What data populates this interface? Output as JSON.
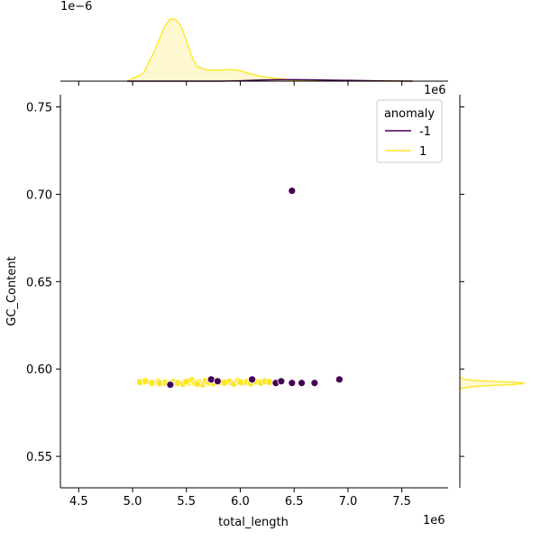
{
  "chart_data": {
    "type": "scatter",
    "title": "",
    "xlabel": "total_length",
    "ylabel": "GC_Content",
    "x_offset_label": "1e6",
    "y_top_offset_label": "1e−6",
    "y_right_offset_label": "1e6",
    "xlim": [
      4.33,
      7.93
    ],
    "ylim": [
      0.532,
      0.757
    ],
    "xticks": [
      4.5,
      5.0,
      5.5,
      6.0,
      6.5,
      7.0,
      7.5
    ],
    "xtick_labels": [
      "4.5",
      "5.0",
      "5.5",
      "6.0",
      "6.5",
      "7.0",
      "7.5"
    ],
    "yticks": [
      0.55,
      0.6,
      0.65,
      0.7,
      0.75
    ],
    "ytick_labels": [
      "0.55",
      "0.60",
      "0.65",
      "0.70",
      "0.75"
    ],
    "legend": {
      "title": "anomaly",
      "placement": "top-right",
      "entries": [
        {
          "label": "-1",
          "color": "#440154"
        },
        {
          "label": "1",
          "color": "#fde725"
        }
      ]
    },
    "colors": {
      "anomaly": "#440154",
      "normal": "#fde725",
      "normal_fill": "#fef3b0"
    },
    "series": [
      {
        "group": "-1",
        "color": "#440154",
        "x": [
          6.48,
          6.92,
          6.33,
          6.38,
          6.48,
          6.57,
          6.69,
          5.73,
          5.79,
          6.11,
          5.35
        ],
        "y": [
          0.702,
          0.594,
          0.592,
          0.593,
          0.592,
          0.592,
          0.592,
          0.594,
          0.593,
          0.594,
          0.591
        ]
      },
      {
        "group": "1",
        "color": "#fde725",
        "x": [
          5.07,
          5.12,
          5.18,
          5.24,
          5.3,
          5.35,
          5.38,
          5.42,
          5.47,
          5.52,
          5.55,
          5.58,
          5.62,
          5.65,
          5.68,
          5.71,
          5.75,
          5.78,
          5.82,
          5.86,
          5.9,
          5.94,
          5.98,
          6.02,
          6.06,
          6.1,
          6.14,
          6.19,
          6.23,
          6.27,
          5.5,
          5.6,
          5.85,
          6.0,
          5.25
        ],
        "y": [
          0.5925,
          0.593,
          0.592,
          0.5928,
          0.5922,
          0.5918,
          0.5925,
          0.592,
          0.5915,
          0.5922,
          0.5935,
          0.5918,
          0.5925,
          0.5912,
          0.593,
          0.5922,
          0.5918,
          0.5935,
          0.5925,
          0.592,
          0.5928,
          0.5915,
          0.5932,
          0.592,
          0.5925,
          0.5918,
          0.5928,
          0.5922,
          0.593,
          0.5925,
          0.5928,
          0.5915,
          0.5922,
          0.5925,
          0.5918
        ]
      }
    ],
    "marginal_x": {
      "x": [
        4.95,
        5.1,
        5.2,
        5.3,
        5.35,
        5.4,
        5.45,
        5.5,
        5.55,
        5.6,
        5.7,
        5.8,
        5.9,
        6.0,
        6.1,
        6.2,
        6.3,
        6.4,
        6.5,
        6.7,
        7.0,
        7.3,
        7.6
      ],
      "normal_density": [
        0.0,
        0.12,
        0.45,
        0.85,
        0.96,
        0.95,
        0.85,
        0.62,
        0.38,
        0.22,
        0.17,
        0.17,
        0.18,
        0.16,
        0.11,
        0.07,
        0.05,
        0.03,
        0.015,
        0.006,
        0.002,
        0.0,
        0.0
      ],
      "anomaly_density": [
        0.0,
        0.0,
        0.0,
        0.0,
        0.0,
        0.0,
        0.0,
        0.0,
        0.0,
        0.0,
        0.0,
        0.0,
        0.002,
        0.006,
        0.012,
        0.018,
        0.022,
        0.024,
        0.024,
        0.02,
        0.012,
        0.004,
        0.0
      ]
    },
    "marginal_y": {
      "y": [
        0.5885,
        0.589,
        0.5898,
        0.5905,
        0.591,
        0.5915,
        0.5918,
        0.5922,
        0.5926,
        0.593,
        0.5935,
        0.594,
        0.5948,
        0.5955
      ],
      "normal_density": [
        0.0,
        0.05,
        0.18,
        0.45,
        0.75,
        0.95,
        1.0,
        0.92,
        0.7,
        0.45,
        0.22,
        0.08,
        0.02,
        0.0
      ]
    }
  }
}
